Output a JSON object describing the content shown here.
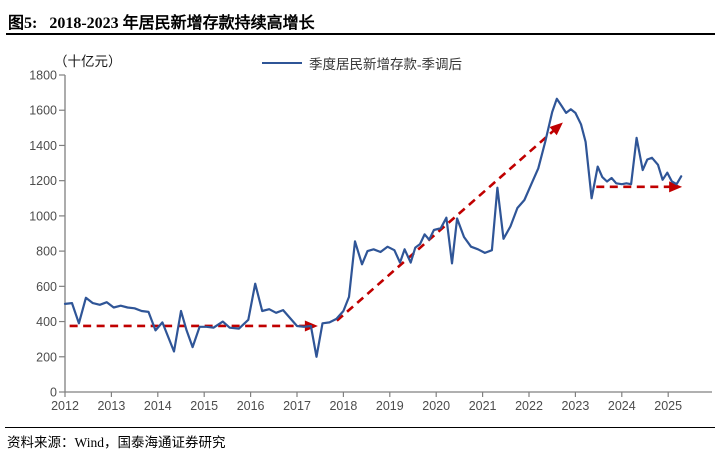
{
  "header": {
    "title_prefix": "图5:",
    "title": "2018-2023 年居民新增存款持续高增长"
  },
  "footer": {
    "source": "资料来源：Wind，国泰海通证券研究"
  },
  "chart_data": {
    "type": "line",
    "title": "2018-2023 年居民新增存款持续高增长",
    "unit_label": "（十亿元）",
    "xlabel": "",
    "ylabel": "十亿元",
    "xlim": [
      2012,
      2025.45
    ],
    "ylim": [
      0,
      1800
    ],
    "x_ticks": [
      2012,
      2013,
      2014,
      2015,
      2016,
      2017,
      2018,
      2019,
      2020,
      2021,
      2022,
      2023,
      2024,
      2025
    ],
    "y_ticks": [
      0,
      200,
      400,
      600,
      800,
      1000,
      1200,
      1400,
      1600,
      1800
    ],
    "grid": false,
    "legend_position": "top-center",
    "legend": {
      "label": "季度居民新增存款-季调后",
      "color": "#2f5597"
    },
    "colors": {
      "line": "#2f5597",
      "trend": "#c00000",
      "axis": "#808080",
      "tick_text": "#4d4d4d"
    },
    "series": [
      {
        "name": "季度居民新增存款-季调后",
        "color": "#2f5597",
        "points": [
          [
            2012.0,
            500
          ],
          [
            2012.15,
            505
          ],
          [
            2012.3,
            390
          ],
          [
            2012.45,
            535
          ],
          [
            2012.6,
            505
          ],
          [
            2012.75,
            495
          ],
          [
            2012.9,
            510
          ],
          [
            2013.05,
            480
          ],
          [
            2013.2,
            490
          ],
          [
            2013.35,
            480
          ],
          [
            2013.5,
            475
          ],
          [
            2013.65,
            460
          ],
          [
            2013.8,
            455
          ],
          [
            2013.95,
            350
          ],
          [
            2014.1,
            395
          ],
          [
            2014.35,
            230
          ],
          [
            2014.5,
            460
          ],
          [
            2014.62,
            350
          ],
          [
            2014.75,
            255
          ],
          [
            2014.9,
            370
          ],
          [
            2015.05,
            370
          ],
          [
            2015.2,
            365
          ],
          [
            2015.4,
            400
          ],
          [
            2015.55,
            365
          ],
          [
            2015.75,
            360
          ],
          [
            2015.95,
            410
          ],
          [
            2016.1,
            615
          ],
          [
            2016.25,
            460
          ],
          [
            2016.4,
            470
          ],
          [
            2016.55,
            450
          ],
          [
            2016.7,
            465
          ],
          [
            2016.85,
            420
          ],
          [
            2017.0,
            375
          ],
          [
            2017.15,
            370
          ],
          [
            2017.3,
            375
          ],
          [
            2017.42,
            200
          ],
          [
            2017.55,
            390
          ],
          [
            2017.7,
            395
          ],
          [
            2017.85,
            415
          ],
          [
            2018.0,
            460
          ],
          [
            2018.12,
            540
          ],
          [
            2018.25,
            855
          ],
          [
            2018.4,
            725
          ],
          [
            2018.52,
            800
          ],
          [
            2018.65,
            810
          ],
          [
            2018.8,
            795
          ],
          [
            2018.95,
            825
          ],
          [
            2019.1,
            805
          ],
          [
            2019.22,
            735
          ],
          [
            2019.32,
            810
          ],
          [
            2019.45,
            735
          ],
          [
            2019.55,
            820
          ],
          [
            2019.65,
            840
          ],
          [
            2019.75,
            895
          ],
          [
            2019.85,
            865
          ],
          [
            2019.95,
            920
          ],
          [
            2020.1,
            930
          ],
          [
            2020.22,
            990
          ],
          [
            2020.34,
            730
          ],
          [
            2020.45,
            985
          ],
          [
            2020.6,
            880
          ],
          [
            2020.75,
            825
          ],
          [
            2020.9,
            810
          ],
          [
            2021.05,
            790
          ],
          [
            2021.2,
            805
          ],
          [
            2021.32,
            1160
          ],
          [
            2021.45,
            870
          ],
          [
            2021.6,
            940
          ],
          [
            2021.75,
            1045
          ],
          [
            2021.9,
            1090
          ],
          [
            2022.05,
            1180
          ],
          [
            2022.2,
            1270
          ],
          [
            2022.35,
            1420
          ],
          [
            2022.5,
            1590
          ],
          [
            2022.6,
            1665
          ],
          [
            2022.7,
            1625
          ],
          [
            2022.8,
            1585
          ],
          [
            2022.9,
            1605
          ],
          [
            2023.0,
            1585
          ],
          [
            2023.12,
            1520
          ],
          [
            2023.22,
            1420
          ],
          [
            2023.35,
            1100
          ],
          [
            2023.48,
            1280
          ],
          [
            2023.58,
            1220
          ],
          [
            2023.68,
            1195
          ],
          [
            2023.78,
            1215
          ],
          [
            2023.88,
            1185
          ],
          [
            2024.0,
            1180
          ],
          [
            2024.1,
            1185
          ],
          [
            2024.2,
            1180
          ],
          [
            2024.32,
            1443
          ],
          [
            2024.45,
            1260
          ],
          [
            2024.55,
            1320
          ],
          [
            2024.65,
            1330
          ],
          [
            2024.78,
            1290
          ],
          [
            2024.88,
            1205
          ],
          [
            2024.98,
            1245
          ],
          [
            2025.08,
            1195
          ],
          [
            2025.18,
            1180
          ],
          [
            2025.28,
            1225
          ]
        ]
      }
    ],
    "trend_lines": [
      {
        "name": "flat-trend-2012-2017",
        "color": "#c00000",
        "from": [
          2012.1,
          375
        ],
        "to": [
          2017.45,
          375
        ]
      },
      {
        "name": "rising-trend-2017-2022",
        "color": "#c00000",
        "from": [
          2017.86,
          405
        ],
        "to": [
          2022.73,
          1530
        ]
      },
      {
        "name": "flat-trend-2023-2025",
        "color": "#c00000",
        "from": [
          2023.45,
          1165
        ],
        "to": [
          2025.3,
          1165
        ]
      }
    ]
  }
}
